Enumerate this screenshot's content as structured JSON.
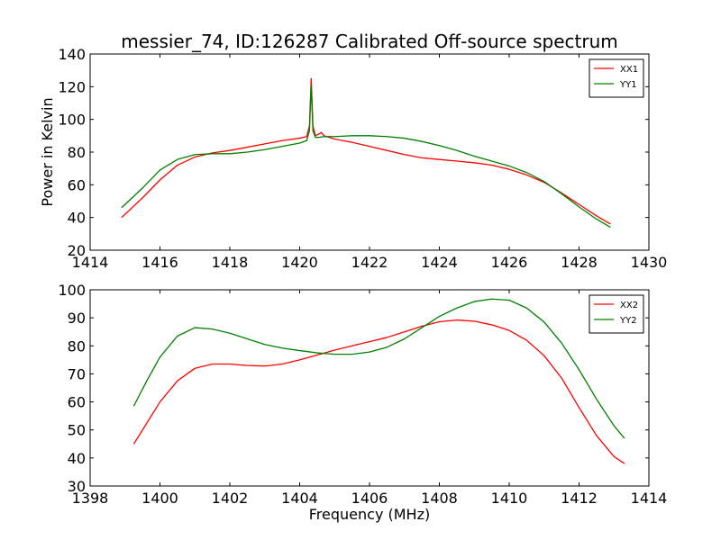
{
  "chart_data": {
    "title": "messier_74, ID:126287 Calibrated Off-source spectrum",
    "panels": [
      {
        "type": "line",
        "xlim": [
          1414,
          1430
        ],
        "ylim": [
          20,
          140
        ],
        "xticks": [
          1414,
          1416,
          1418,
          1420,
          1422,
          1424,
          1426,
          1428,
          1430
        ],
        "yticks": [
          20,
          40,
          60,
          80,
          100,
          120,
          140
        ],
        "xlabel": "",
        "ylabel": "Power in Kelvin",
        "legend_position": "top-right",
        "series": [
          {
            "name": "XX1",
            "color": "#ff0000",
            "x": [
              1414.9,
              1415.5,
              1416.0,
              1416.5,
              1417.0,
              1417.5,
              1418.0,
              1418.5,
              1419.0,
              1419.5,
              1420.0,
              1420.2,
              1420.28,
              1420.33,
              1420.38,
              1420.45,
              1420.55,
              1420.62,
              1420.7,
              1421.0,
              1421.5,
              1422.0,
              1422.5,
              1423.0,
              1423.5,
              1424.0,
              1424.5,
              1425.0,
              1425.5,
              1426.0,
              1426.5,
              1427.0,
              1427.5,
              1428.0,
              1428.5,
              1428.9
            ],
            "y": [
              40,
              52,
              63,
              72,
              77,
              79.5,
              81,
              83,
              85,
              87,
              88.5,
              89.5,
              96,
              125,
              96,
              90,
              91,
              92,
              90,
              88,
              86,
              83.5,
              81,
              78.5,
              76.5,
              75.5,
              74.5,
              73.5,
              72,
              69.5,
              66,
              61.5,
              55,
              48,
              41,
              36
            ]
          },
          {
            "name": "YY1",
            "color": "#008000",
            "x": [
              1414.9,
              1415.5,
              1416.0,
              1416.5,
              1417.0,
              1417.5,
              1418.0,
              1418.5,
              1419.0,
              1419.5,
              1420.0,
              1420.2,
              1420.28,
              1420.33,
              1420.38,
              1420.45,
              1420.55,
              1420.7,
              1421.0,
              1421.5,
              1422.0,
              1422.5,
              1423.0,
              1423.5,
              1424.0,
              1424.5,
              1425.0,
              1425.5,
              1426.0,
              1426.5,
              1427.0,
              1427.5,
              1428.0,
              1428.5,
              1428.9
            ],
            "y": [
              46,
              58,
              69,
              75.5,
              78.5,
              79,
              79,
              80,
              81.5,
              83.5,
              85.5,
              87,
              93,
              121,
              93,
              89,
              89,
              89.5,
              89.5,
              90,
              90,
              89.5,
              88.5,
              86.5,
              84,
              81,
              77.5,
              74.5,
              71.5,
              67.5,
              62,
              54.5,
              46.5,
              39,
              34
            ]
          }
        ]
      },
      {
        "type": "line",
        "xlim": [
          1398,
          1414
        ],
        "ylim": [
          30,
          100
        ],
        "xticks": [
          1398,
          1400,
          1402,
          1404,
          1406,
          1408,
          1410,
          1412,
          1414
        ],
        "yticks": [
          30,
          40,
          50,
          60,
          70,
          80,
          90,
          100
        ],
        "xlabel": "Frequency (MHz)",
        "ylabel": "",
        "legend_position": "top-right",
        "series": [
          {
            "name": "XX2",
            "color": "#ff0000",
            "x": [
              1399.25,
              1399.6,
              1400.0,
              1400.5,
              1401.0,
              1401.5,
              1402.0,
              1402.5,
              1403.0,
              1403.5,
              1404.0,
              1404.5,
              1405.0,
              1405.5,
              1406.0,
              1406.5,
              1407.0,
              1407.5,
              1408.0,
              1408.5,
              1409.0,
              1409.5,
              1410.0,
              1410.5,
              1411.0,
              1411.5,
              1412.0,
              1412.5,
              1413.0,
              1413.3
            ],
            "y": [
              45,
              52,
              60,
              67.5,
              72,
              73.5,
              73.5,
              73,
              72.8,
              73.5,
              75,
              76.7,
              78.5,
              80,
              81.5,
              83,
              85,
              87,
              88.6,
              89.2,
              88.8,
              87.5,
              85.5,
              82,
              76.5,
              68.5,
              58,
              48,
              40.5,
              38
            ]
          },
          {
            "name": "YY2",
            "color": "#008000",
            "x": [
              1399.25,
              1399.6,
              1400.0,
              1400.5,
              1401.0,
              1401.5,
              1402.0,
              1402.5,
              1403.0,
              1403.5,
              1404.0,
              1404.5,
              1405.0,
              1405.5,
              1406.0,
              1406.5,
              1407.0,
              1407.5,
              1408.0,
              1408.5,
              1409.0,
              1409.5,
              1410.0,
              1410.5,
              1411.0,
              1411.5,
              1412.0,
              1412.5,
              1413.0,
              1413.3
            ],
            "y": [
              58.5,
              67,
              76,
              83.5,
              86.5,
              86,
              84.5,
              82.5,
              80.5,
              79.2,
              78.3,
              77.5,
              77,
              77,
              77.8,
              79.5,
              82.5,
              86.5,
              90.5,
              93.5,
              95.8,
              96.7,
              96.3,
              93.5,
              88.5,
              81,
              71.5,
              61,
              51.5,
              47
            ]
          }
        ]
      }
    ]
  }
}
